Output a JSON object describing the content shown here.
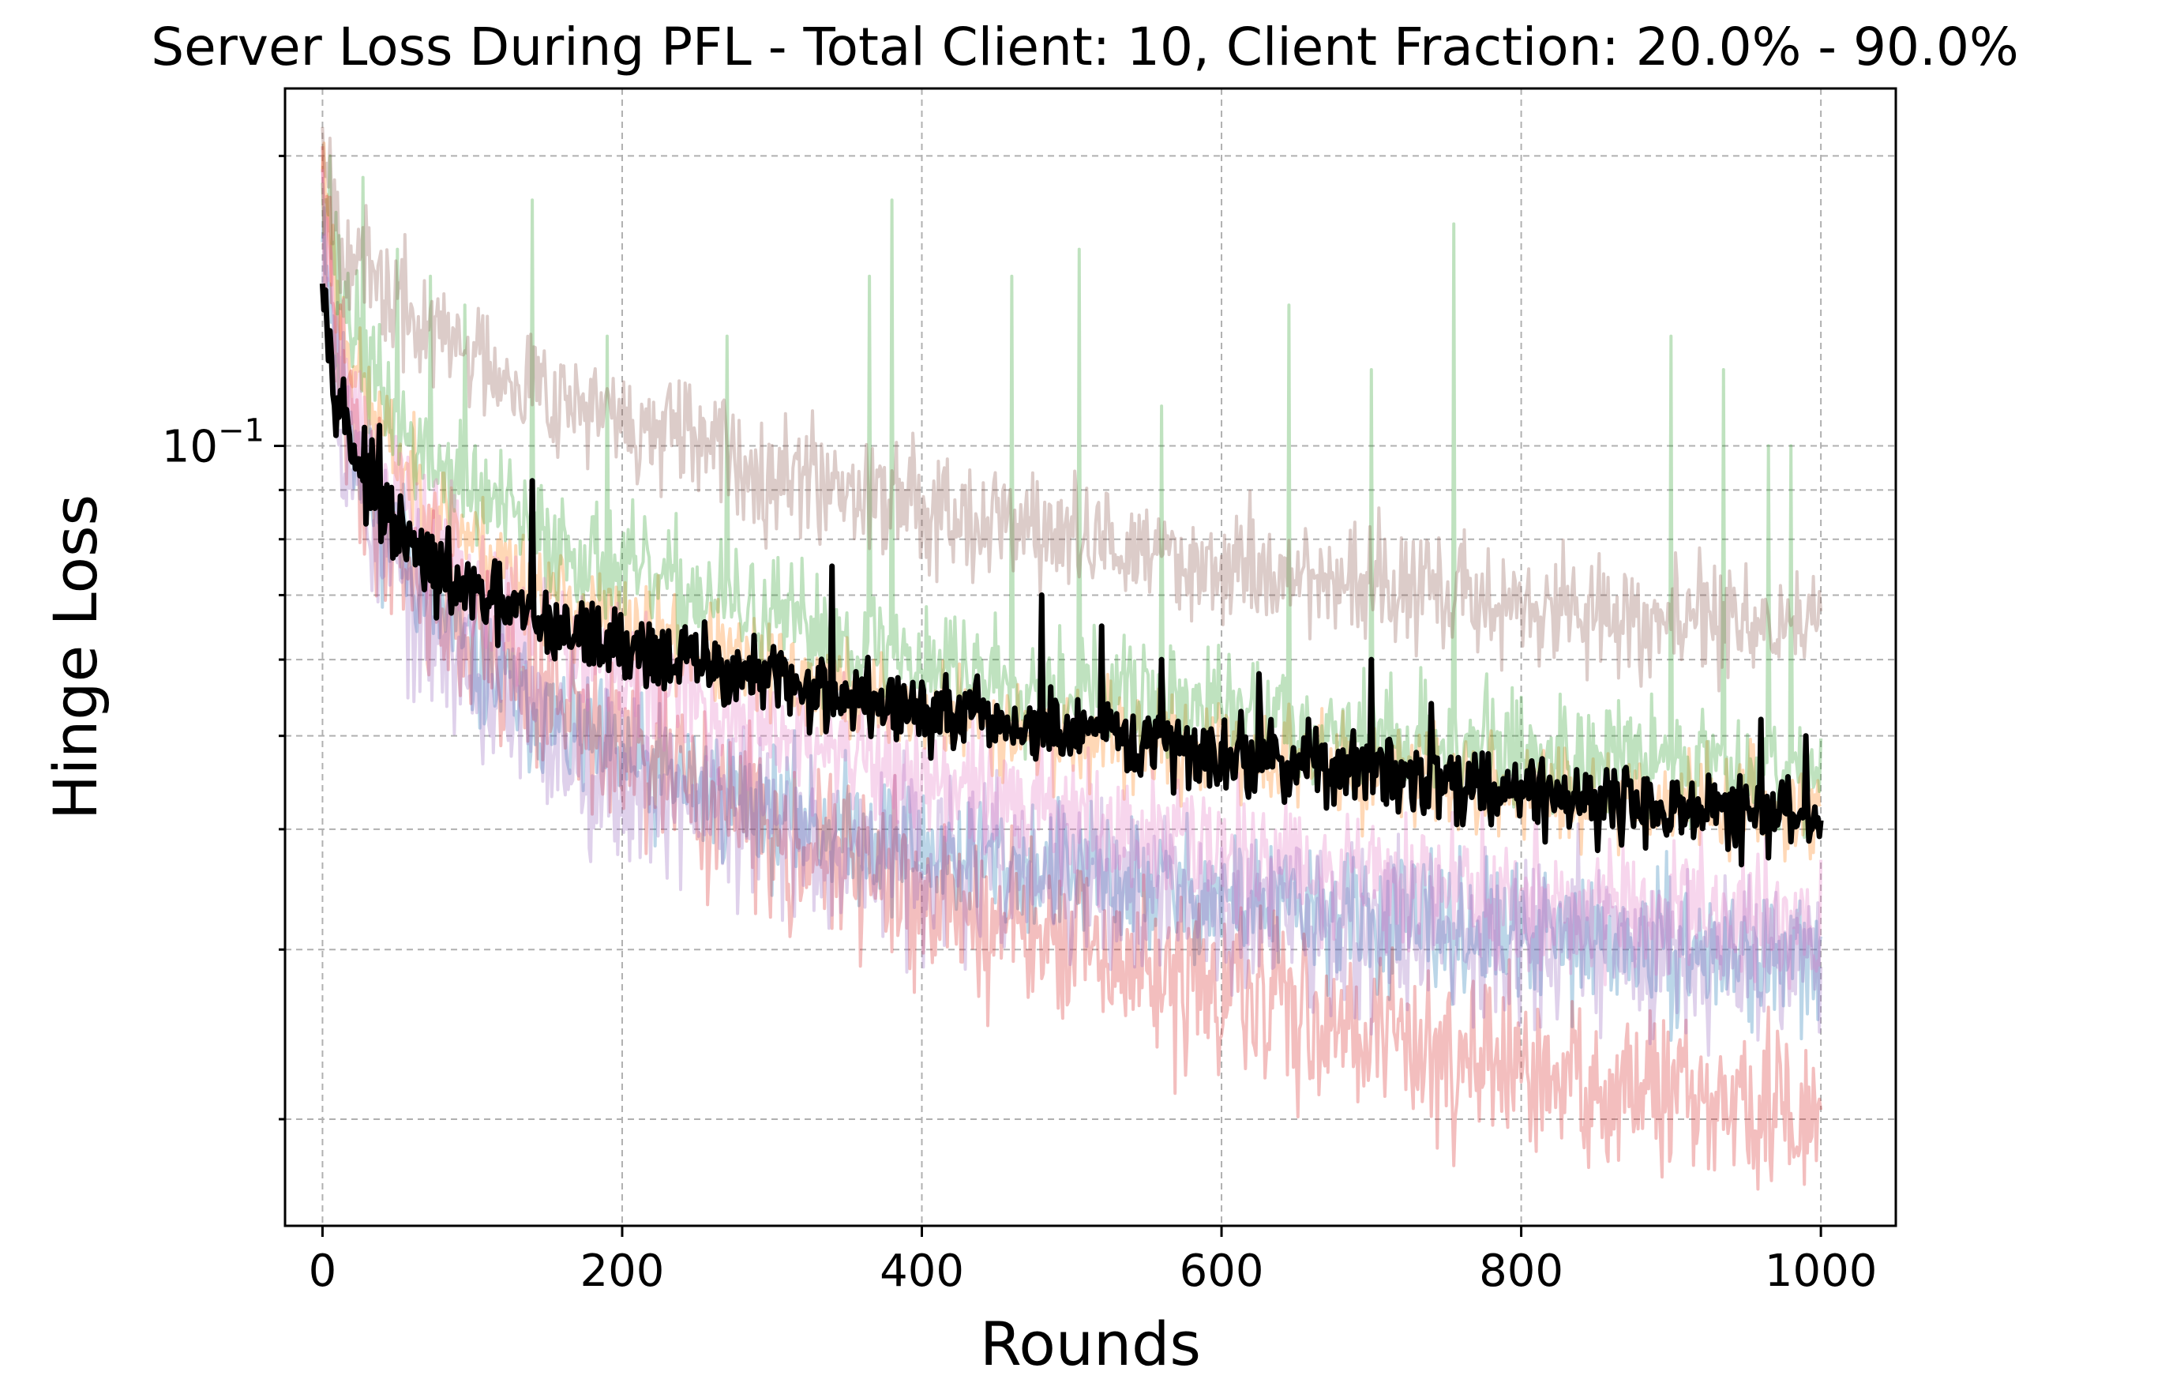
{
  "chart_data": {
    "type": "line",
    "title": "Server Loss During PFL - Total Client: 10, Client Fraction: 20.0% - 90.0%",
    "xlabel": "Rounds",
    "ylabel": "Hinge Loss",
    "xlim": [
      -25,
      1050
    ],
    "ylim": [
      0.0155,
      0.235
    ],
    "yscale": "log",
    "grid": true,
    "legend": "none",
    "xticks": [
      0,
      200,
      400,
      600,
      800,
      1000
    ],
    "xtick_labels": [
      "0",
      "200",
      "400",
      "600",
      "800",
      "1000"
    ],
    "yticks_major": [
      0.1
    ],
    "ytick_major_base": "10",
    "ytick_major_exp": "−1",
    "yticks_minor": [
      0.02,
      0.03,
      0.04,
      0.05,
      0.06,
      0.07,
      0.08,
      0.09,
      0.2
    ],
    "series": [
      {
        "color": "#1f77b4",
        "opacity": 0.3,
        "width": 4,
        "points": [
          [
            0,
            0.18
          ],
          [
            10,
            0.12
          ],
          [
            30,
            0.09
          ],
          [
            60,
            0.075
          ],
          [
            100,
            0.06
          ],
          [
            150,
            0.052
          ],
          [
            200,
            0.047
          ],
          [
            300,
            0.042
          ],
          [
            400,
            0.038
          ],
          [
            500,
            0.036
          ],
          [
            600,
            0.034
          ],
          [
            700,
            0.032
          ],
          [
            800,
            0.031
          ],
          [
            900,
            0.03
          ],
          [
            1000,
            0.029
          ]
        ],
        "noise": 0.08,
        "seed": 11,
        "spikes": []
      },
      {
        "color": "#ff7f0e",
        "opacity": 0.3,
        "width": 4,
        "points": [
          [
            0,
            0.2
          ],
          [
            10,
            0.14
          ],
          [
            30,
            0.11
          ],
          [
            60,
            0.092
          ],
          [
            100,
            0.08
          ],
          [
            150,
            0.07
          ],
          [
            200,
            0.065
          ],
          [
            300,
            0.058
          ],
          [
            400,
            0.053
          ],
          [
            500,
            0.05
          ],
          [
            600,
            0.048
          ],
          [
            700,
            0.046
          ],
          [
            800,
            0.044
          ],
          [
            900,
            0.043
          ],
          [
            1000,
            0.042
          ]
        ],
        "noise": 0.06,
        "seed": 23,
        "spikes": []
      },
      {
        "color": "#2ca02c",
        "opacity": 0.3,
        "width": 4,
        "points": [
          [
            0,
            0.2
          ],
          [
            10,
            0.15
          ],
          [
            30,
            0.12
          ],
          [
            60,
            0.1
          ],
          [
            100,
            0.09
          ],
          [
            150,
            0.08
          ],
          [
            200,
            0.074
          ],
          [
            300,
            0.066
          ],
          [
            400,
            0.06
          ],
          [
            500,
            0.056
          ],
          [
            600,
            0.053
          ],
          [
            700,
            0.05
          ],
          [
            800,
            0.048
          ],
          [
            900,
            0.047
          ],
          [
            1000,
            0.046
          ]
        ],
        "noise": 0.07,
        "seed": 37,
        "spikes": [
          [
            5,
            0.2
          ],
          [
            27,
            0.19
          ],
          [
            50,
            0.16
          ],
          [
            72,
            0.15
          ],
          [
            95,
            0.14
          ],
          [
            140,
            0.18
          ],
          [
            190,
            0.13
          ],
          [
            270,
            0.13
          ],
          [
            365,
            0.15
          ],
          [
            380,
            0.18
          ],
          [
            460,
            0.15
          ],
          [
            505,
            0.16
          ],
          [
            560,
            0.11
          ],
          [
            645,
            0.14
          ],
          [
            700,
            0.12
          ],
          [
            755,
            0.17
          ],
          [
            900,
            0.13
          ],
          [
            935,
            0.12
          ],
          [
            965,
            0.1
          ],
          [
            980,
            0.1
          ]
        ]
      },
      {
        "color": "#d62728",
        "opacity": 0.3,
        "width": 4,
        "points": [
          [
            0,
            0.18
          ],
          [
            10,
            0.12
          ],
          [
            30,
            0.09
          ],
          [
            60,
            0.075
          ],
          [
            100,
            0.063
          ],
          [
            150,
            0.055
          ],
          [
            200,
            0.048
          ],
          [
            300,
            0.04
          ],
          [
            400,
            0.034
          ],
          [
            500,
            0.03
          ],
          [
            600,
            0.027
          ],
          [
            700,
            0.025
          ],
          [
            800,
            0.022
          ],
          [
            900,
            0.021
          ],
          [
            1000,
            0.02
          ]
        ],
        "noise": 0.1,
        "seed": 41,
        "spikes": []
      },
      {
        "color": "#9467bd",
        "opacity": 0.3,
        "width": 4,
        "points": [
          [
            0,
            0.17
          ],
          [
            10,
            0.11
          ],
          [
            30,
            0.085
          ],
          [
            60,
            0.068
          ],
          [
            100,
            0.058
          ],
          [
            150,
            0.05
          ],
          [
            200,
            0.045
          ],
          [
            300,
            0.04
          ],
          [
            400,
            0.037
          ],
          [
            500,
            0.035
          ],
          [
            600,
            0.033
          ],
          [
            700,
            0.032
          ],
          [
            800,
            0.031
          ],
          [
            900,
            0.03
          ],
          [
            1000,
            0.03
          ]
        ],
        "noise": 0.1,
        "seed": 53,
        "spikes": []
      },
      {
        "color": "#8c564b",
        "opacity": 0.3,
        "width": 4,
        "points": [
          [
            0,
            0.22
          ],
          [
            10,
            0.17
          ],
          [
            30,
            0.15
          ],
          [
            60,
            0.135
          ],
          [
            100,
            0.125
          ],
          [
            150,
            0.115
          ],
          [
            200,
            0.105
          ],
          [
            300,
            0.095
          ],
          [
            400,
            0.088
          ],
          [
            500,
            0.08
          ],
          [
            600,
            0.075
          ],
          [
            700,
            0.072
          ],
          [
            800,
            0.068
          ],
          [
            900,
            0.066
          ],
          [
            1000,
            0.065
          ]
        ],
        "noise": 0.07,
        "seed": 67,
        "spikes": []
      },
      {
        "color": "#e377c2",
        "opacity": 0.3,
        "width": 4,
        "points": [
          [
            0,
            0.19
          ],
          [
            10,
            0.13
          ],
          [
            30,
            0.1
          ],
          [
            60,
            0.085
          ],
          [
            100,
            0.073
          ],
          [
            150,
            0.064
          ],
          [
            200,
            0.058
          ],
          [
            300,
            0.05
          ],
          [
            400,
            0.045
          ],
          [
            500,
            0.041
          ],
          [
            600,
            0.038
          ],
          [
            700,
            0.036
          ],
          [
            800,
            0.034
          ],
          [
            900,
            0.033
          ],
          [
            1000,
            0.032
          ]
        ],
        "noise": 0.08,
        "seed": 79,
        "spikes": []
      },
      {
        "color": "#000000",
        "opacity": 1.0,
        "width": 7,
        "points": [
          [
            0,
            0.16
          ],
          [
            5,
            0.125
          ],
          [
            10,
            0.115
          ],
          [
            20,
            0.1
          ],
          [
            40,
            0.085
          ],
          [
            60,
            0.078
          ],
          [
            80,
            0.073
          ],
          [
            100,
            0.07
          ],
          [
            150,
            0.065
          ],
          [
            200,
            0.062
          ],
          [
            300,
            0.057
          ],
          [
            400,
            0.053
          ],
          [
            500,
            0.05
          ],
          [
            600,
            0.048
          ],
          [
            700,
            0.046
          ],
          [
            800,
            0.044
          ],
          [
            900,
            0.042
          ],
          [
            1000,
            0.041
          ]
        ],
        "noise": 0.045,
        "seed": 97,
        "spikes": [
          [
            38,
            0.105
          ],
          [
            140,
            0.092
          ],
          [
            340,
            0.075
          ],
          [
            480,
            0.07
          ],
          [
            520,
            0.065
          ],
          [
            560,
            0.06
          ],
          [
            625,
            0.058
          ],
          [
            700,
            0.06
          ],
          [
            740,
            0.054
          ],
          [
            960,
            0.052
          ],
          [
            990,
            0.05
          ]
        ]
      }
    ]
  }
}
